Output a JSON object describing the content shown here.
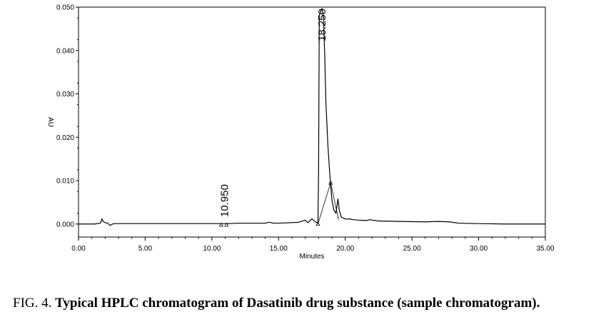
{
  "chart_data": {
    "type": "line",
    "xlabel": "Minutes",
    "ylabel": "AU",
    "xlim": [
      0,
      35
    ],
    "ylim": [
      -0.003,
      0.05
    ],
    "x_ticks": [
      "0.00",
      "5.00",
      "10.00",
      "15.00",
      "20.00",
      "25.00",
      "30.00",
      "35.00"
    ],
    "y_ticks": [
      "0.000",
      "0.010",
      "0.020",
      "0.030",
      "0.040",
      "0.050"
    ],
    "peak_labels": [
      {
        "x": 10.95,
        "label": "10.950"
      },
      {
        "x": 18.25,
        "label": "18.250"
      }
    ],
    "series": [
      {
        "x": [
          0,
          1.2,
          1.65,
          1.75,
          1.85,
          2.0,
          2.2,
          2.3,
          2.4,
          2.55,
          2.7,
          3.0,
          5.0,
          8.0,
          10.5,
          10.95,
          11.2,
          12.0,
          14.0,
          14.3,
          14.6,
          15.0,
          16.5,
          17.0,
          17.2,
          17.5,
          17.8,
          17.95,
          18.0,
          18.05,
          18.15,
          18.25,
          18.35,
          18.45,
          18.55,
          18.7,
          18.85,
          19.0,
          19.15,
          19.3,
          19.45,
          19.55,
          19.7,
          19.9,
          20.1,
          20.3,
          20.6,
          21.0,
          21.6,
          21.8,
          22.5,
          24.0,
          26.0,
          27.0,
          27.8,
          28.5,
          30.0,
          32.0,
          35.0
        ],
        "y": [
          0.0,
          0.0,
          0.0002,
          0.0012,
          0.0006,
          0.0003,
          0.0002,
          -0.0002,
          -0.0003,
          0.0,
          0.0001,
          0.0001,
          0.0001,
          0.0001,
          0.0001,
          0.0001,
          0.0001,
          0.0002,
          0.0002,
          0.0004,
          0.0002,
          0.0002,
          0.0004,
          0.0009,
          0.0003,
          0.0012,
          0.0004,
          0.0003,
          0.012,
          0.048,
          0.049,
          0.0497,
          0.048,
          0.04,
          0.028,
          0.018,
          0.011,
          0.0055,
          0.0032,
          0.0025,
          0.0058,
          0.0032,
          0.0016,
          0.0013,
          0.0011,
          0.0012,
          0.001,
          0.0009,
          0.0008,
          0.001,
          0.0007,
          0.0006,
          0.0005,
          0.0006,
          0.0005,
          0.0002,
          0.0001,
          0.0,
          0.0
        ]
      }
    ],
    "baseline_segments": [
      {
        "x": [
          17.95,
          18.9
        ],
        "y": [
          0.0,
          0.0095
        ]
      },
      {
        "x": [
          18.9,
          19.5
        ],
        "y": [
          0.0095,
          0.001
        ]
      }
    ],
    "markers": [
      {
        "x": 10.7,
        "y": -0.0002
      },
      {
        "x": 11.1,
        "y": -0.0002
      },
      {
        "x": 17.95,
        "y": 0.0
      },
      {
        "x": 18.9,
        "y": 0.0095
      }
    ]
  },
  "caption": {
    "prefix": "FIG. 4. ",
    "text": "Typical HPLC chromatogram of Dasatinib drug substance (sample chromatogram)."
  }
}
